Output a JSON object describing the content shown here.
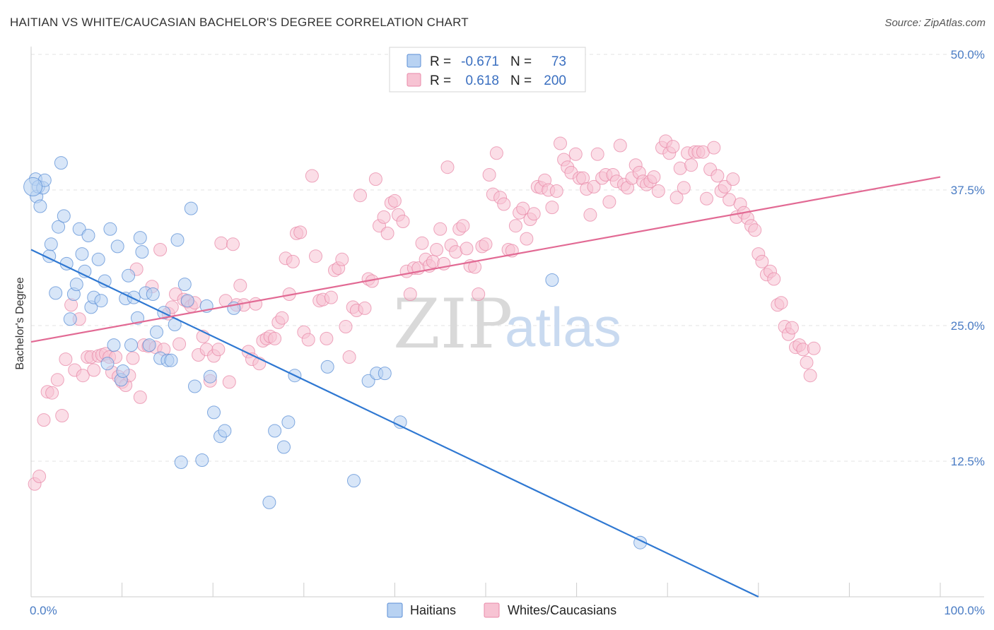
{
  "title": "HAITIAN VS WHITE/CAUCASIAN BACHELOR'S DEGREE CORRELATION CHART",
  "source": "Source: ZipAtlas.com",
  "colors": {
    "haitians_fill": "#b8d2f2",
    "haitians_stroke": "#5b8fd6",
    "haitians_line": "#2f78d2",
    "whites_fill": "#f7c3d3",
    "whites_stroke": "#e889a8",
    "whites_line": "#e26a94",
    "axis_text": "#4a7cc4"
  },
  "legend": {
    "rows": [
      {
        "r_label": "R =",
        "r_value": "-0.671",
        "n_label": "N =",
        "n_value": "73"
      },
      {
        "r_label": "R =",
        "r_value": "0.618",
        "n_label": "N =",
        "n_value": "200"
      }
    ]
  },
  "bottom_legend": [
    "Haitians",
    "Whites/Caucasians"
  ],
  "watermark": {
    "zip": "ZIP",
    "atlas": "atlas"
  },
  "chart_data": {
    "type": "scatter",
    "title": "HAITIAN VS WHITE/CAUCASIAN BACHELOR'S DEGREE CORRELATION CHART",
    "xlabel": "",
    "ylabel": "Bachelor's Degree",
    "xlim": [
      0,
      100
    ],
    "ylim": [
      0,
      50
    ],
    "x_tick_labels": [
      "0.0%",
      "100.0%"
    ],
    "y_ticks": [
      12.5,
      25.0,
      37.5,
      50.0
    ],
    "y_tick_labels": [
      "12.5%",
      "25.0%",
      "37.5%",
      "50.0%"
    ],
    "grid": true,
    "series": [
      {
        "name": "Haitians",
        "R": -0.671,
        "N": 73,
        "trend": {
          "x0": 0,
          "y0": 32.0,
          "x1": 80,
          "y1": 0.0
        },
        "points": [
          [
            0.5,
            38.5
          ],
          [
            0.6,
            36.9
          ],
          [
            0.8,
            37.8
          ],
          [
            1.0,
            36.0
          ],
          [
            1.3,
            37.7
          ],
          [
            1.5,
            38.4
          ],
          [
            2.0,
            31.4
          ],
          [
            2.2,
            32.5
          ],
          [
            2.7,
            28.0
          ],
          [
            3.0,
            34.1
          ],
          [
            3.3,
            40.0
          ],
          [
            3.6,
            35.1
          ],
          [
            3.9,
            30.7
          ],
          [
            4.3,
            25.6
          ],
          [
            4.7,
            27.9
          ],
          [
            5.0,
            28.8
          ],
          [
            5.3,
            33.9
          ],
          [
            5.6,
            31.6
          ],
          [
            5.9,
            30.0
          ],
          [
            6.3,
            33.3
          ],
          [
            6.6,
            26.7
          ],
          [
            6.9,
            27.6
          ],
          [
            7.4,
            31.1
          ],
          [
            7.7,
            27.3
          ],
          [
            8.1,
            29.1
          ],
          [
            8.4,
            21.5
          ],
          [
            8.7,
            33.9
          ],
          [
            9.1,
            23.2
          ],
          [
            9.5,
            32.3
          ],
          [
            9.9,
            20.0
          ],
          [
            10.1,
            20.8
          ],
          [
            10.4,
            27.5
          ],
          [
            10.7,
            29.6
          ],
          [
            11.0,
            23.2
          ],
          [
            11.3,
            27.6
          ],
          [
            11.7,
            25.7
          ],
          [
            12.0,
            33.1
          ],
          [
            12.2,
            31.8
          ],
          [
            12.6,
            28.0
          ],
          [
            13.0,
            23.2
          ],
          [
            13.4,
            27.9
          ],
          [
            13.8,
            24.4
          ],
          [
            14.2,
            22.0
          ],
          [
            14.6,
            26.2
          ],
          [
            15.0,
            21.8
          ],
          [
            15.4,
            21.8
          ],
          [
            15.8,
            25.1
          ],
          [
            16.1,
            32.9
          ],
          [
            16.5,
            12.4
          ],
          [
            16.9,
            28.8
          ],
          [
            17.2,
            27.3
          ],
          [
            17.6,
            35.8
          ],
          [
            18.0,
            19.4
          ],
          [
            18.8,
            12.6
          ],
          [
            19.3,
            26.8
          ],
          [
            19.7,
            20.3
          ],
          [
            20.1,
            17.0
          ],
          [
            20.8,
            14.8
          ],
          [
            21.3,
            15.3
          ],
          [
            22.3,
            26.6
          ],
          [
            26.2,
            8.7
          ],
          [
            26.8,
            15.3
          ],
          [
            27.8,
            13.8
          ],
          [
            28.3,
            16.1
          ],
          [
            29.0,
            20.4
          ],
          [
            32.6,
            21.2
          ],
          [
            35.5,
            10.7
          ],
          [
            37.1,
            19.9
          ],
          [
            38.0,
            20.6
          ],
          [
            38.9,
            20.6
          ],
          [
            40.6,
            16.1
          ],
          [
            57.3,
            29.2
          ],
          [
            67.0,
            5.0
          ]
        ]
      },
      {
        "name": "Whites/Caucasians",
        "R": 0.618,
        "N": 200,
        "trend": {
          "x0": 0,
          "y0": 23.5,
          "x1": 100,
          "y1": 38.7
        },
        "points": [
          [
            0.4,
            10.4
          ],
          [
            0.9,
            11.1
          ],
          [
            1.4,
            16.3
          ],
          [
            1.8,
            18.9
          ],
          [
            2.3,
            18.8
          ],
          [
            2.9,
            20.0
          ],
          [
            3.4,
            16.7
          ],
          [
            3.8,
            21.9
          ],
          [
            4.4,
            26.9
          ],
          [
            4.8,
            20.9
          ],
          [
            5.3,
            25.6
          ],
          [
            5.7,
            20.4
          ],
          [
            6.2,
            22.1
          ],
          [
            6.6,
            22.1
          ],
          [
            6.9,
            20.9
          ],
          [
            7.4,
            22.2
          ],
          [
            7.8,
            22.3
          ],
          [
            8.2,
            22.4
          ],
          [
            8.6,
            22.1
          ],
          [
            8.9,
            20.7
          ],
          [
            9.3,
            22.1
          ],
          [
            9.6,
            20.3
          ],
          [
            10.0,
            19.8
          ],
          [
            10.4,
            19.5
          ],
          [
            10.8,
            20.4
          ],
          [
            11.2,
            22.0
          ],
          [
            11.6,
            30.2
          ],
          [
            12.0,
            18.4
          ],
          [
            12.4,
            23.2
          ],
          [
            12.9,
            23.1
          ],
          [
            13.3,
            28.6
          ],
          [
            13.7,
            23.0
          ],
          [
            14.2,
            32.0
          ],
          [
            14.6,
            22.8
          ],
          [
            15.1,
            26.1
          ],
          [
            15.5,
            26.7
          ],
          [
            15.9,
            27.9
          ],
          [
            16.3,
            23.3
          ],
          [
            16.8,
            27.4
          ],
          [
            17.2,
            27.2
          ],
          [
            17.6,
            26.8
          ],
          [
            18.0,
            27.1
          ],
          [
            18.4,
            22.3
          ],
          [
            18.9,
            24.0
          ],
          [
            19.3,
            22.8
          ],
          [
            19.7,
            19.9
          ],
          [
            20.1,
            22.2
          ],
          [
            20.6,
            22.8
          ],
          [
            20.9,
            32.6
          ],
          [
            21.4,
            27.3
          ],
          [
            21.8,
            19.8
          ],
          [
            22.2,
            32.5
          ],
          [
            22.6,
            26.9
          ],
          [
            23.0,
            28.7
          ],
          [
            23.4,
            26.9
          ],
          [
            23.9,
            22.6
          ],
          [
            24.3,
            21.9
          ],
          [
            24.7,
            27.0
          ],
          [
            25.1,
            21.5
          ],
          [
            25.5,
            23.6
          ],
          [
            25.9,
            23.8
          ],
          [
            26.3,
            24.0
          ],
          [
            26.8,
            23.8
          ],
          [
            27.2,
            25.3
          ],
          [
            27.6,
            25.7
          ],
          [
            28.0,
            31.2
          ],
          [
            28.4,
            27.9
          ],
          [
            28.8,
            30.9
          ],
          [
            29.2,
            33.5
          ],
          [
            29.6,
            33.6
          ],
          [
            30.0,
            24.4
          ],
          [
            30.5,
            23.7
          ],
          [
            30.9,
            38.8
          ],
          [
            31.3,
            31.4
          ],
          [
            31.7,
            27.3
          ],
          [
            32.1,
            27.4
          ],
          [
            32.5,
            23.8
          ],
          [
            33.0,
            27.6
          ],
          [
            33.4,
            30.1
          ],
          [
            33.8,
            30.3
          ],
          [
            34.2,
            31.1
          ],
          [
            34.6,
            24.9
          ],
          [
            35.0,
            22.1
          ],
          [
            35.4,
            26.7
          ],
          [
            35.8,
            26.4
          ],
          [
            36.2,
            37.0
          ],
          [
            36.7,
            26.6
          ],
          [
            37.1,
            29.3
          ],
          [
            37.5,
            29.1
          ],
          [
            37.9,
            38.5
          ],
          [
            38.3,
            34.2
          ],
          [
            38.8,
            35.0
          ],
          [
            39.2,
            33.5
          ],
          [
            39.6,
            36.3
          ],
          [
            40.0,
            36.5
          ],
          [
            40.4,
            35.2
          ],
          [
            40.9,
            34.6
          ],
          [
            41.3,
            30.0
          ],
          [
            41.7,
            27.9
          ],
          [
            42.1,
            30.3
          ],
          [
            42.6,
            30.3
          ],
          [
            43.0,
            32.6
          ],
          [
            43.4,
            31.1
          ],
          [
            43.8,
            30.5
          ],
          [
            44.2,
            30.9
          ],
          [
            44.6,
            32.0
          ],
          [
            45.0,
            33.9
          ],
          [
            45.4,
            30.7
          ],
          [
            45.8,
            39.6
          ],
          [
            46.2,
            32.4
          ],
          [
            46.7,
            31.8
          ],
          [
            47.1,
            33.9
          ],
          [
            47.5,
            34.2
          ],
          [
            47.9,
            32.1
          ],
          [
            48.3,
            30.5
          ],
          [
            48.8,
            30.4
          ],
          [
            49.2,
            27.9
          ],
          [
            49.6,
            32.3
          ],
          [
            50.0,
            32.5
          ],
          [
            50.4,
            38.9
          ],
          [
            50.8,
            37.1
          ],
          [
            51.2,
            40.9
          ],
          [
            51.6,
            36.8
          ],
          [
            52.0,
            36.2
          ],
          [
            52.5,
            32.0
          ],
          [
            52.9,
            31.9
          ],
          [
            53.3,
            34.2
          ],
          [
            53.7,
            35.4
          ],
          [
            54.1,
            35.8
          ],
          [
            54.5,
            33.0
          ],
          [
            54.9,
            34.8
          ],
          [
            55.3,
            35.3
          ],
          [
            55.7,
            37.8
          ],
          [
            56.1,
            37.7
          ],
          [
            56.5,
            38.4
          ],
          [
            56.9,
            37.5
          ],
          [
            57.3,
            35.9
          ],
          [
            57.8,
            37.4
          ],
          [
            58.2,
            41.8
          ],
          [
            58.6,
            40.3
          ],
          [
            59.0,
            39.6
          ],
          [
            59.4,
            39.1
          ],
          [
            59.9,
            40.8
          ],
          [
            60.3,
            38.6
          ],
          [
            60.7,
            38.6
          ],
          [
            61.1,
            37.6
          ],
          [
            61.5,
            35.2
          ],
          [
            61.9,
            37.8
          ],
          [
            62.3,
            40.8
          ],
          [
            62.8,
            38.6
          ],
          [
            63.2,
            38.9
          ],
          [
            63.6,
            36.4
          ],
          [
            64.0,
            38.9
          ],
          [
            64.4,
            38.3
          ],
          [
            64.8,
            41.6
          ],
          [
            65.2,
            38.0
          ],
          [
            65.6,
            37.7
          ],
          [
            66.1,
            38.6
          ],
          [
            66.5,
            39.8
          ],
          [
            66.9,
            39.1
          ],
          [
            67.3,
            38.3
          ],
          [
            67.7,
            38.0
          ],
          [
            68.1,
            38.3
          ],
          [
            68.5,
            38.7
          ],
          [
            69.0,
            37.4
          ],
          [
            69.4,
            41.4
          ],
          [
            69.8,
            42.0
          ],
          [
            70.2,
            40.9
          ],
          [
            70.6,
            41.5
          ],
          [
            71.0,
            36.8
          ],
          [
            71.4,
            39.5
          ],
          [
            71.8,
            37.7
          ],
          [
            72.2,
            40.9
          ],
          [
            72.6,
            39.8
          ],
          [
            73.0,
            41.0
          ],
          [
            73.4,
            41.0
          ],
          [
            73.9,
            41.0
          ],
          [
            74.3,
            36.7
          ],
          [
            74.7,
            39.4
          ],
          [
            75.1,
            41.4
          ],
          [
            75.5,
            38.8
          ],
          [
            75.9,
            37.4
          ],
          [
            76.3,
            37.8
          ],
          [
            76.8,
            36.6
          ],
          [
            77.2,
            38.5
          ],
          [
            77.6,
            35.0
          ],
          [
            78.0,
            36.2
          ],
          [
            78.4,
            35.4
          ],
          [
            78.8,
            34.9
          ],
          [
            79.2,
            34.2
          ],
          [
            79.6,
            33.8
          ],
          [
            80.0,
            31.6
          ],
          [
            80.4,
            30.9
          ],
          [
            80.9,
            29.7
          ],
          [
            81.3,
            30.0
          ],
          [
            81.7,
            29.3
          ],
          [
            82.1,
            26.9
          ],
          [
            82.5,
            27.1
          ],
          [
            82.9,
            24.9
          ],
          [
            83.3,
            24.2
          ],
          [
            83.7,
            24.8
          ],
          [
            84.1,
            23.0
          ],
          [
            84.5,
            23.2
          ],
          [
            84.9,
            22.8
          ],
          [
            85.3,
            21.6
          ],
          [
            85.7,
            20.4
          ],
          [
            86.1,
            22.9
          ]
        ]
      }
    ]
  }
}
